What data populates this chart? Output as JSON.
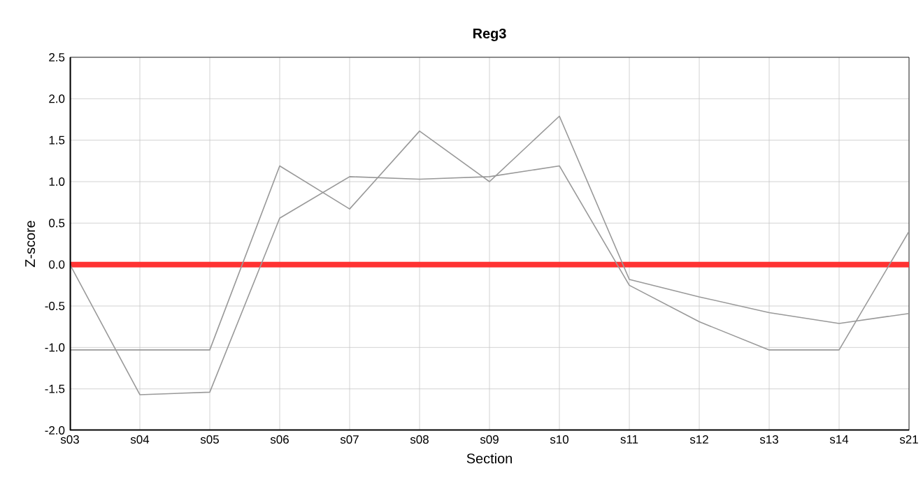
{
  "chart_data": {
    "type": "line",
    "title": "Reg3",
    "xlabel": "Section",
    "ylabel": "Z-score",
    "categories": [
      "s03",
      "s04",
      "s05",
      "s06",
      "s07",
      "s08",
      "s09",
      "s10",
      "s11",
      "s12",
      "s13",
      "s14",
      "s21"
    ],
    "series": [
      {
        "color": "#999999",
        "values": [
          0.0,
          -1.57,
          -1.54,
          0.56,
          1.06,
          1.03,
          1.06,
          1.19,
          -0.25,
          -0.69,
          -1.03,
          -1.03,
          0.4
        ]
      },
      {
        "color": "#999999",
        "values": [
          -1.03,
          -1.03,
          -1.03,
          1.19,
          0.67,
          1.61,
          1.0,
          1.79,
          -0.18,
          -0.39,
          -0.58,
          -0.71,
          -0.59
        ]
      }
    ],
    "ylim": [
      -2.0,
      2.5
    ],
    "yticks": [
      {
        "value": -2,
        "label": "-2.0"
      },
      -1.5,
      {
        "value": -1,
        "label": "-1.0"
      },
      -0.5,
      {
        "value": 0,
        "label": "0.0"
      },
      0.5,
      {
        "value": 1,
        "label": "1.0"
      },
      1.5,
      {
        "value": 2,
        "label": "2.0"
      },
      2.5
    ],
    "grid": true,
    "marker": "none",
    "line_style": "solid",
    "ref_lines": [
      {
        "axis": "y",
        "value": 0,
        "color": "#ff3333"
      }
    ]
  }
}
